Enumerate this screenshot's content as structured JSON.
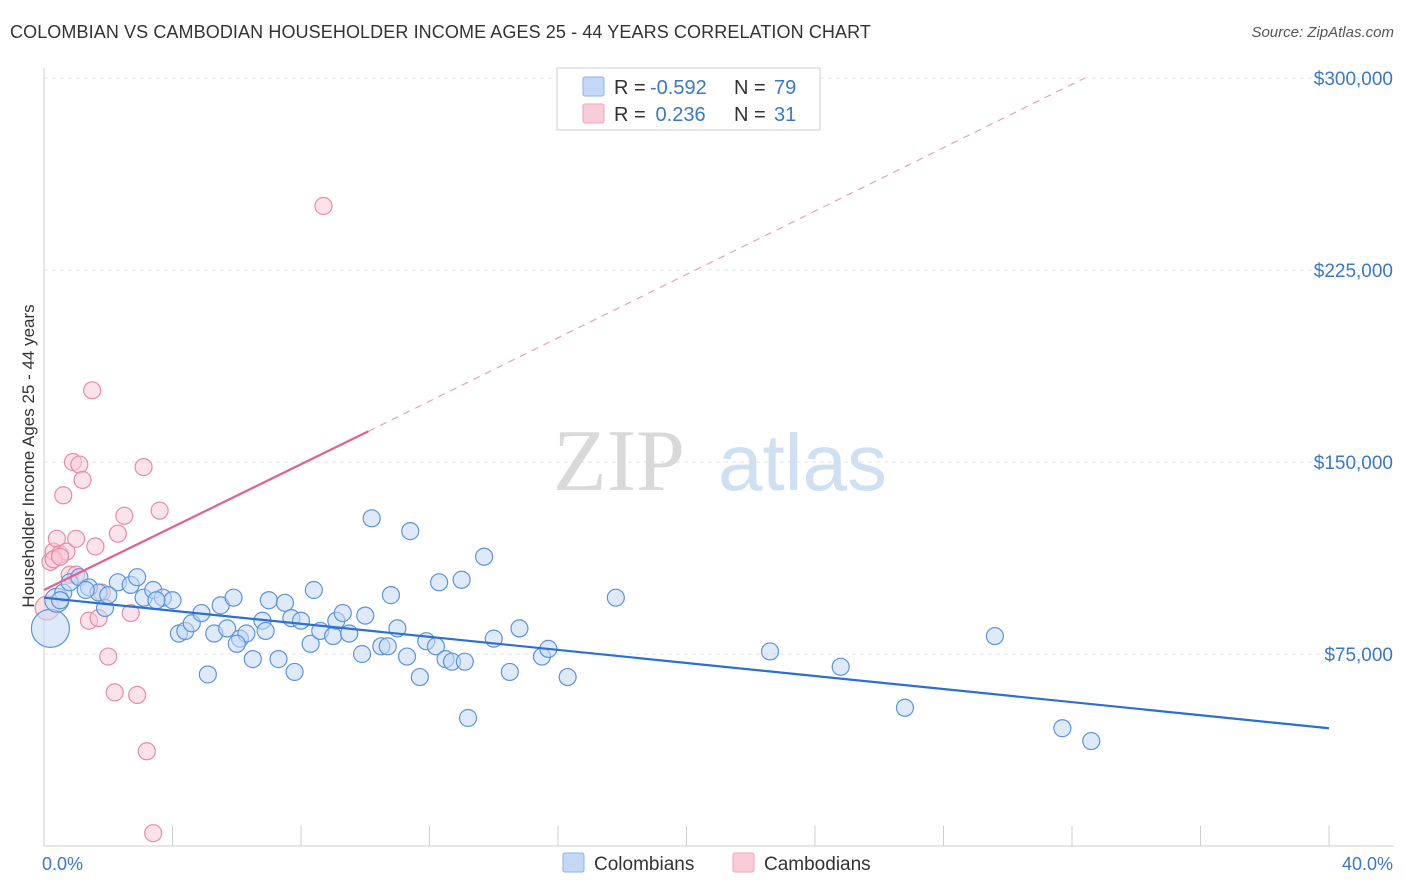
{
  "title": "COLOMBIAN VS CAMBODIAN HOUSEHOLDER INCOME AGES 25 - 44 YEARS CORRELATION CHART",
  "source": "Source: ZipAtlas.com",
  "watermark": {
    "zip": "ZIP",
    "atlas": "atlas"
  },
  "legend_top": [
    {
      "r_label": "R =",
      "r_value": "-0.592",
      "n_label": "N =",
      "n_value": "79",
      "color": "#a9c8f0"
    },
    {
      "r_label": "R =",
      "r_value": " 0.236",
      "n_label": "N =",
      "n_value": "31",
      "color": "#f5b7c9"
    }
  ],
  "legend_bottom": [
    {
      "label": "Colombians",
      "color": "#a9c8f0"
    },
    {
      "label": "Cambodians",
      "color": "#f5b7c9"
    }
  ],
  "colors": {
    "blue_line": "#2b6fd0",
    "pink_line": "#e0628f",
    "blue_fill": "#a9c8f0",
    "pink_fill": "#f5b7c9",
    "axis_text": "#3a78c9"
  },
  "chart_data": {
    "type": "scatter",
    "title": "COLOMBIAN VS CAMBODIAN HOUSEHOLDER INCOME AGES 25 - 44 YEARS CORRELATION CHART",
    "xlabel": "",
    "ylabel": "Householder Income Ages 25 - 44 years",
    "xlim": [
      0,
      40
    ],
    "ylim": [
      0,
      310000
    ],
    "x_tick_labels": [
      "0.0%",
      "40.0%"
    ],
    "y_ticks": [
      75000,
      150000,
      225000,
      300000
    ],
    "y_tick_labels": [
      "$75,000",
      "$150,000",
      "$225,000",
      "$300,000"
    ],
    "grid": true,
    "legend_position": "top-center",
    "series": [
      {
        "name": "Colombians",
        "color": "#a9c8f0",
        "trend": {
          "x": [
            0,
            40
          ],
          "y": [
            97000,
            46000
          ],
          "style": "solid"
        },
        "points": [
          [
            0.2,
            85000,
            3
          ],
          [
            0.4,
            96000,
            2
          ],
          [
            0.6,
            99000,
            1
          ],
          [
            0.8,
            103000,
            1
          ],
          [
            1.1,
            105000,
            1
          ],
          [
            1.4,
            101000,
            1
          ],
          [
            1.7,
            99000,
            1
          ],
          [
            1.9,
            93000,
            1
          ],
          [
            2.3,
            103000,
            1
          ],
          [
            2.7,
            102000,
            1
          ],
          [
            2.9,
            105000,
            1
          ],
          [
            3.1,
            97000,
            1
          ],
          [
            3.4,
            100000,
            1
          ],
          [
            3.7,
            97000,
            1
          ],
          [
            4.0,
            96000,
            1
          ],
          [
            4.2,
            83000,
            1
          ],
          [
            4.4,
            84000,
            1
          ],
          [
            4.6,
            87000,
            1
          ],
          [
            4.9,
            91000,
            1
          ],
          [
            5.1,
            67000,
            1
          ],
          [
            5.3,
            83000,
            1
          ],
          [
            5.5,
            94000,
            1
          ],
          [
            5.7,
            85000,
            1
          ],
          [
            5.9,
            97000,
            1
          ],
          [
            6.1,
            81000,
            1
          ],
          [
            6.3,
            83000,
            1
          ],
          [
            6.5,
            73000,
            1
          ],
          [
            6.8,
            88000,
            1
          ],
          [
            6.9,
            84000,
            1
          ],
          [
            7.0,
            96000,
            1
          ],
          [
            7.3,
            73000,
            1
          ],
          [
            7.5,
            95000,
            1
          ],
          [
            7.7,
            89000,
            1
          ],
          [
            7.8,
            68000,
            1
          ],
          [
            8.0,
            88000,
            1
          ],
          [
            8.3,
            79000,
            1
          ],
          [
            8.4,
            100000,
            1
          ],
          [
            8.6,
            84000,
            1
          ],
          [
            9.0,
            82000,
            1
          ],
          [
            9.1,
            88000,
            1
          ],
          [
            9.3,
            91000,
            1
          ],
          [
            9.9,
            75000,
            1
          ],
          [
            10.0,
            90000,
            1
          ],
          [
            10.2,
            128000,
            1
          ],
          [
            10.5,
            78000,
            1
          ],
          [
            10.7,
            78000,
            1
          ],
          [
            10.8,
            98000,
            1
          ],
          [
            11.0,
            85000,
            1
          ],
          [
            11.3,
            74000,
            1
          ],
          [
            11.4,
            123000,
            1
          ],
          [
            11.7,
            66000,
            1
          ],
          [
            11.9,
            80000,
            1
          ],
          [
            12.2,
            78000,
            1
          ],
          [
            12.3,
            103000,
            1
          ],
          [
            12.5,
            73000,
            1
          ],
          [
            12.7,
            72000,
            1
          ],
          [
            13.0,
            104000,
            1
          ],
          [
            13.1,
            72000,
            1
          ],
          [
            13.2,
            50000,
            1
          ],
          [
            13.7,
            113000,
            1
          ],
          [
            14.0,
            81000,
            1
          ],
          [
            14.5,
            68000,
            1
          ],
          [
            14.8,
            85000,
            1
          ],
          [
            15.5,
            74000,
            1
          ],
          [
            15.7,
            77000,
            1
          ],
          [
            16.3,
            66000,
            1
          ],
          [
            17.8,
            97000,
            1
          ],
          [
            22.6,
            76000,
            1
          ],
          [
            24.8,
            70000,
            1
          ],
          [
            26.8,
            54000,
            1
          ],
          [
            29.6,
            82000,
            1
          ],
          [
            31.7,
            46000,
            1
          ],
          [
            32.6,
            41000,
            1
          ],
          [
            0.5,
            96000,
            1
          ],
          [
            1.3,
            100000,
            1
          ],
          [
            2.0,
            98000,
            1
          ],
          [
            3.5,
            96000,
            1
          ],
          [
            9.5,
            83000,
            1
          ],
          [
            6.0,
            79000,
            1
          ]
        ]
      },
      {
        "name": "Cambodians",
        "color": "#f5b7c9",
        "trend": {
          "x": [
            0,
            10.1
          ],
          "y": [
            100000,
            162000
          ],
          "style": "solid",
          "extension": {
            "x": [
              10.1,
              32.4
            ],
            "y": [
              162000,
              300000
            ],
            "style": "dashed"
          }
        },
        "points": [
          [
            0.1,
            93000,
            2
          ],
          [
            0.2,
            111000,
            1
          ],
          [
            0.3,
            115000,
            1
          ],
          [
            0.4,
            120000,
            1
          ],
          [
            0.5,
            114000,
            1
          ],
          [
            0.6,
            137000,
            1
          ],
          [
            0.7,
            115000,
            1
          ],
          [
            0.8,
            106000,
            1
          ],
          [
            0.9,
            150000,
            1
          ],
          [
            1.0,
            120000,
            1
          ],
          [
            1.1,
            149000,
            1
          ],
          [
            1.2,
            143000,
            1
          ],
          [
            1.4,
            88000,
            1
          ],
          [
            1.5,
            178000,
            1
          ],
          [
            1.6,
            117000,
            1
          ],
          [
            1.7,
            89000,
            1
          ],
          [
            1.8,
            99000,
            1
          ],
          [
            2.0,
            74000,
            1
          ],
          [
            2.2,
            60000,
            1
          ],
          [
            2.3,
            122000,
            1
          ],
          [
            2.5,
            129000,
            1
          ],
          [
            2.7,
            91000,
            1
          ],
          [
            2.9,
            59000,
            1
          ],
          [
            3.1,
            148000,
            1
          ],
          [
            3.2,
            37000,
            1
          ],
          [
            3.4,
            5000,
            1
          ],
          [
            3.6,
            131000,
            1
          ],
          [
            8.7,
            250000,
            1
          ],
          [
            0.3,
            112000,
            1
          ],
          [
            0.5,
            113000,
            1
          ],
          [
            1.0,
            106000,
            1
          ]
        ]
      }
    ]
  }
}
